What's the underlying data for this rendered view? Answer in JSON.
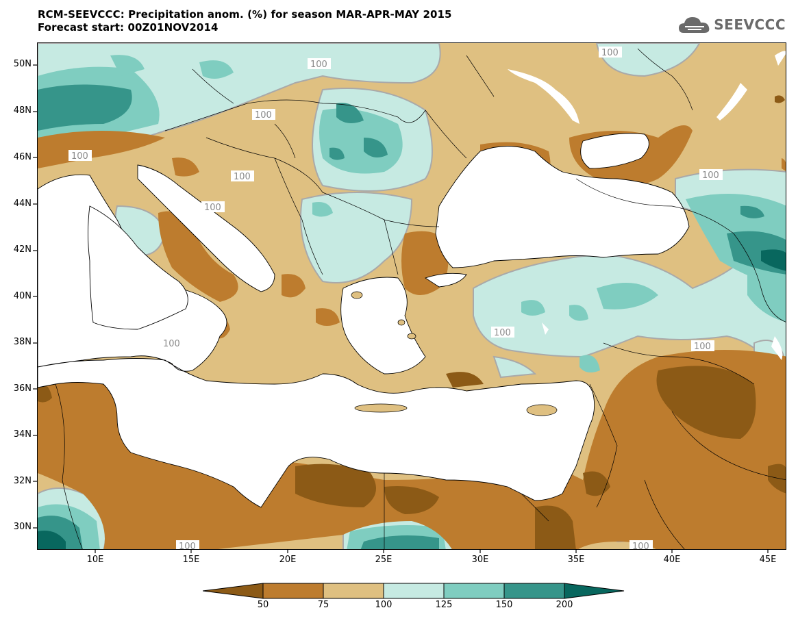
{
  "title": {
    "line1": "RCM-SEEVCCC: Precipitation anom. (%) for season MAR-APR-MAY 2015",
    "line2": "Forecast start: 00Z01NOV2014"
  },
  "logo": {
    "text": "SEEVCCC",
    "icon": "cloud-icon"
  },
  "y_ticks": [
    "50N",
    "48N",
    "46N",
    "44N",
    "42N",
    "40N",
    "38N",
    "36N",
    "34N",
    "32N",
    "30N"
  ],
  "x_ticks": [
    "10E",
    "15E",
    "20E",
    "25E",
    "30E",
    "35E",
    "40E",
    "45E"
  ],
  "contour_labels": [
    "100",
    "100",
    "100",
    "100",
    "100",
    "100",
    "100",
    "100",
    "100",
    "100",
    "100",
    "100"
  ],
  "colorbar": {
    "levels": [
      "50",
      "75",
      "100",
      "125",
      "150",
      "200"
    ],
    "colors": [
      "#8c5a16",
      "#bd7c2e",
      "#dfc081",
      "#c6eae2",
      "#7fcdc0",
      "#36958a",
      "#08675e"
    ]
  },
  "colors": {
    "below_50": "#8c5a16",
    "r50_75": "#bd7c2e",
    "r75_100": "#dfc081",
    "r100_125": "#c6eae2",
    "r125_150": "#7fcdc0",
    "r150_200": "#36958a",
    "above_200": "#08675e",
    "sea": "#ffffff",
    "contour": "#a9a9a9"
  }
}
